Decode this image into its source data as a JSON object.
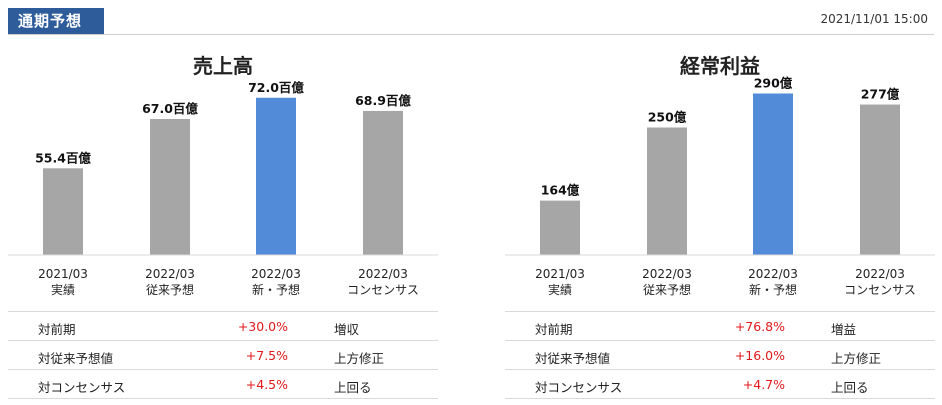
{
  "header": {
    "tag": "通期予想",
    "timestamp": "2021/11/01 15:00"
  },
  "colors": {
    "bar": "#a6a6a6",
    "highlight": "#528bd7",
    "positive": "#e0181b",
    "header": "#2e5c9a"
  },
  "panels": [
    {
      "categories": [
        {
          "line1": "2021/03",
          "line2": "実績"
        },
        {
          "line1": "2022/03",
          "line2": "従来予想"
        },
        {
          "line1": "2022/03",
          "line2": "新・予想"
        },
        {
          "line1": "2022/03",
          "line2": "コンセンサス"
        }
      ],
      "metrics": [
        {
          "label": "対前期",
          "value": "+30.0%",
          "text": "増収"
        },
        {
          "label": "対従来予想値",
          "value": "+7.5%",
          "text": "上方修正"
        },
        {
          "label": "対コンセンサス",
          "value": "+4.5%",
          "text": "上回る"
        }
      ]
    },
    {
      "categories": [
        {
          "line1": "2021/03",
          "line2": "実績"
        },
        {
          "line1": "2022/03",
          "line2": "従来予想"
        },
        {
          "line1": "2022/03",
          "line2": "新・予想"
        },
        {
          "line1": "2022/03",
          "line2": "コンセンサス"
        }
      ],
      "metrics": [
        {
          "label": "対前期",
          "value": "+76.8%",
          "text": "増益"
        },
        {
          "label": "対従来予想値",
          "value": "+16.0%",
          "text": "上方修正"
        },
        {
          "label": "対コンセンサス",
          "value": "+4.7%",
          "text": "上回る"
        }
      ]
    }
  ],
  "chart_data": [
    {
      "type": "bar",
      "title": "売上高",
      "categories": [
        "2021/03 実績",
        "2022/03 従来予想",
        "2022/03 新・予想",
        "2022/03 コンセンサス"
      ],
      "values": [
        55.4,
        67.0,
        72.0,
        68.9
      ],
      "data_labels": [
        "55.4百億",
        "67.0百億",
        "72.0百億",
        "68.9百億"
      ],
      "highlight_index": 2,
      "ylim": [
        35,
        75
      ]
    },
    {
      "type": "bar",
      "title": "経常利益",
      "categories": [
        "2021/03 実績",
        "2022/03 従来予想",
        "2022/03 新・予想",
        "2022/03 コンセンサス"
      ],
      "values": [
        164,
        250,
        290,
        277
      ],
      "data_labels": [
        "164億",
        "250億",
        "290億",
        "277億"
      ],
      "highlight_index": 2,
      "ylim": [
        100,
        300
      ]
    }
  ]
}
